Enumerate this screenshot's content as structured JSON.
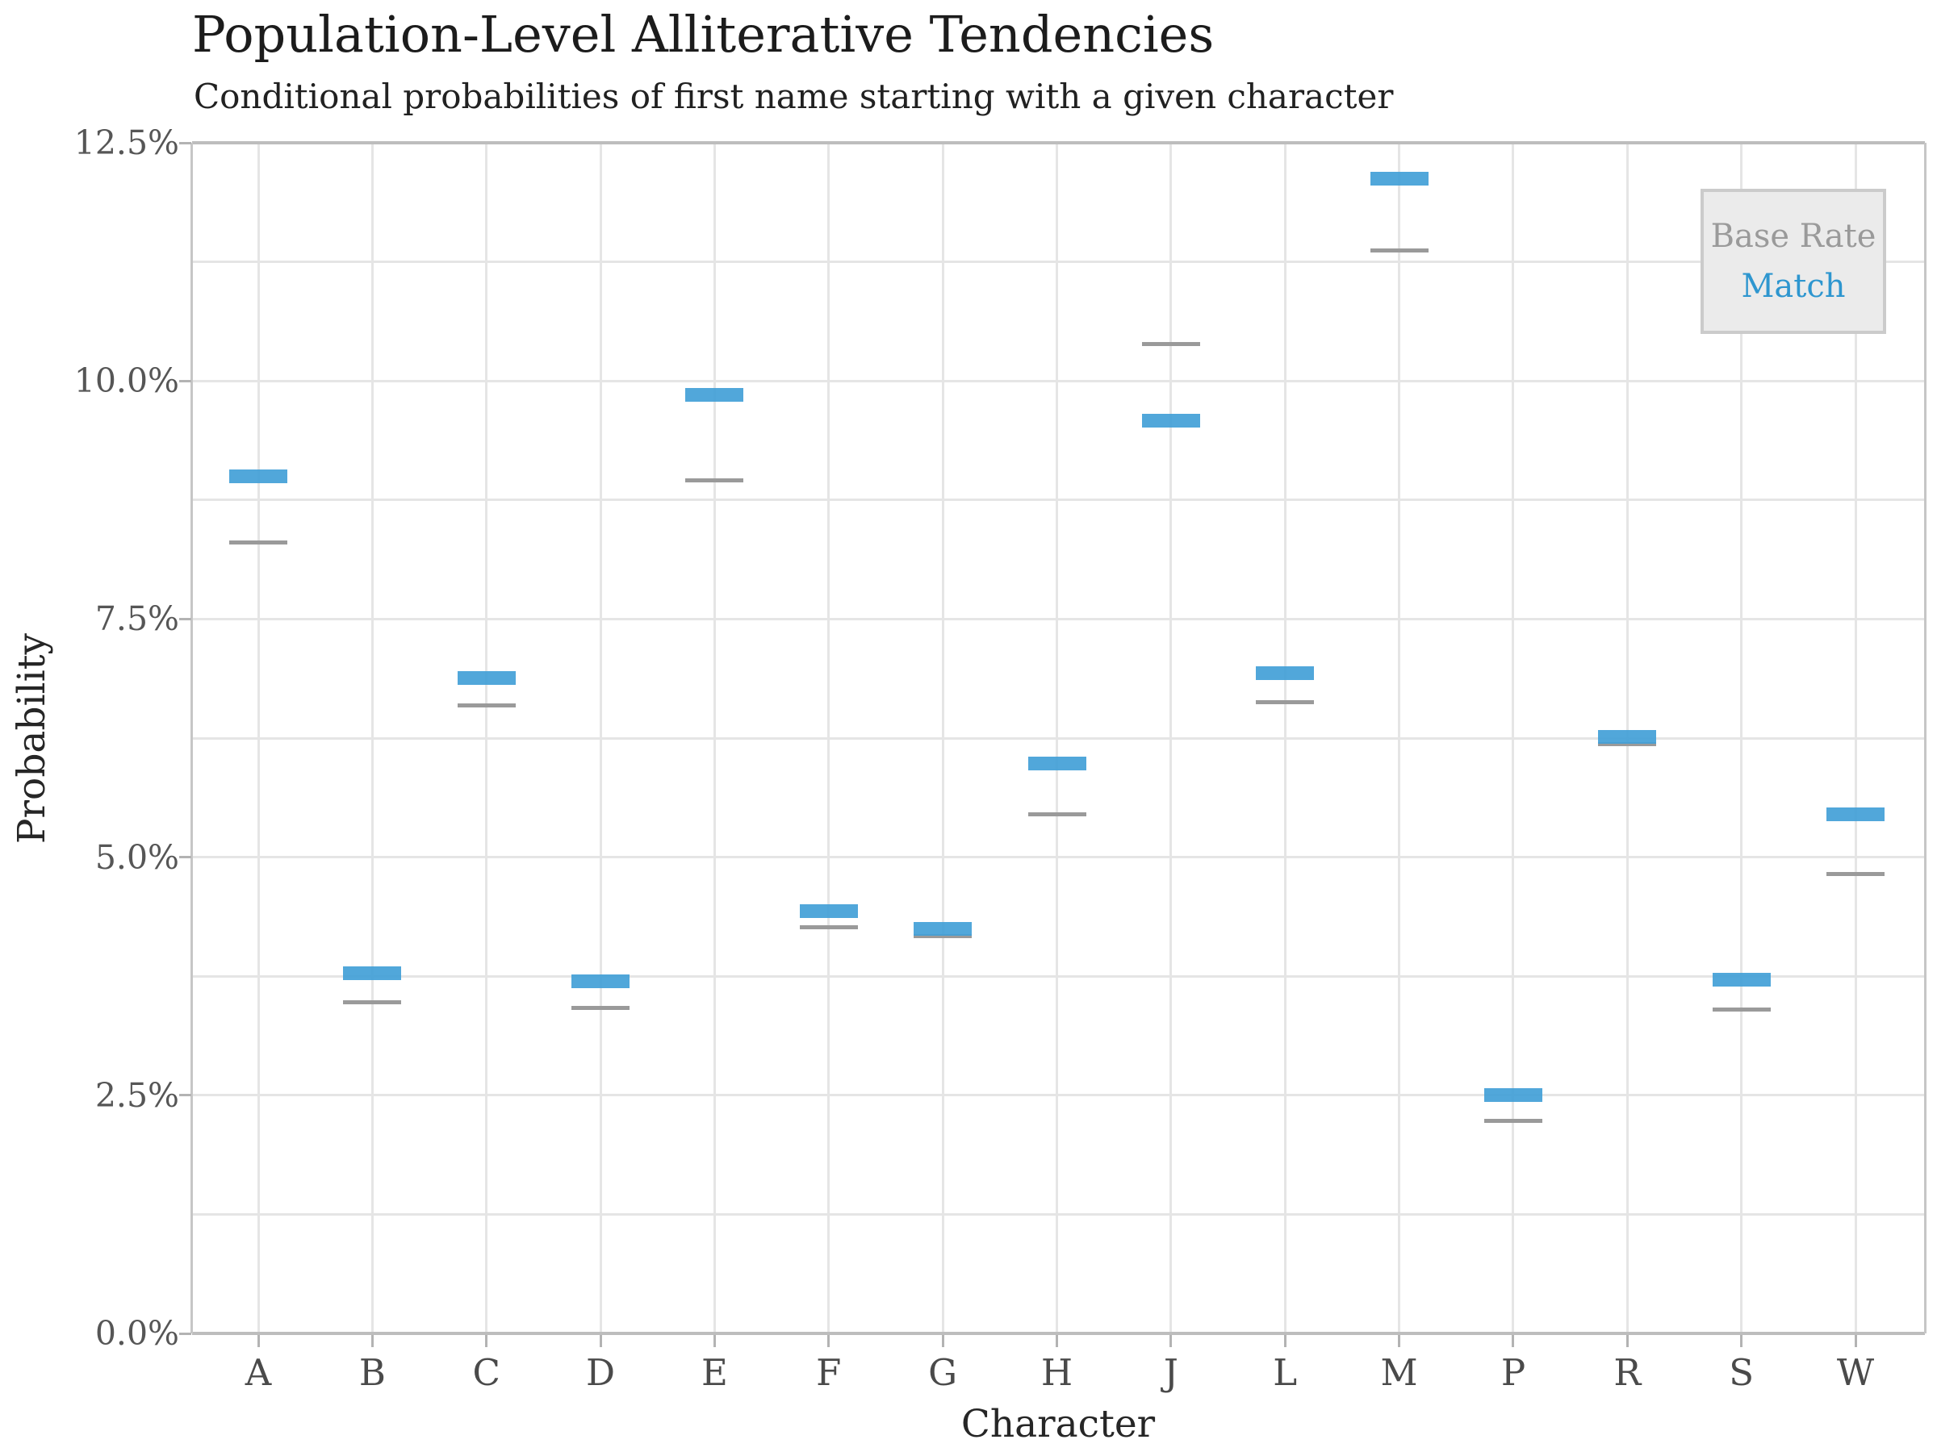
{
  "header": {
    "title": "Population-Level Alliterative Tendencies",
    "subtitle": "Conditional probabilities of first name starting with a given character"
  },
  "chart_data": {
    "type": "bar",
    "title": "Population-Level Alliterative Tendencies",
    "subtitle": "Conditional probabilities of first name starting with a given character",
    "xlabel": "Character",
    "ylabel": "Probability",
    "categories": [
      "A",
      "B",
      "C",
      "D",
      "E",
      "F",
      "G",
      "H",
      "J",
      "L",
      "M",
      "P",
      "R",
      "S",
      "W"
    ],
    "series": [
      {
        "name": "Match",
        "unit": "percent",
        "values": [
          9.0,
          3.78,
          6.88,
          3.7,
          9.85,
          4.43,
          4.25,
          5.98,
          9.58,
          6.93,
          12.12,
          2.5,
          6.26,
          3.71,
          5.45
        ]
      },
      {
        "name": "Base Rate",
        "unit": "percent",
        "values": [
          8.3,
          3.48,
          6.59,
          3.42,
          8.96,
          4.26,
          4.17,
          5.45,
          10.39,
          6.63,
          11.37,
          2.23,
          6.19,
          3.4,
          4.82
        ]
      }
    ],
    "ylim": [
      0,
      12.5
    ],
    "ytick_values": [
      0,
      2.5,
      5,
      7.5,
      10,
      12.5
    ],
    "ytick_labels": [
      "0.0%",
      "2.5%",
      "5.0%",
      "7.5%",
      "10.0%",
      "12.5%"
    ],
    "minor_ytick_values": [
      1.25,
      3.75,
      6.25,
      8.75,
      11.25
    ],
    "grid": true,
    "legend_position": "top-right"
  },
  "legend": {
    "items": [
      {
        "label": "Base Rate",
        "color": "#9a9a9a"
      },
      {
        "label": "Match",
        "color": "#2e96cf"
      }
    ]
  },
  "colors": {
    "match_bar": "#55a9db",
    "base_rate_line": "#9a9a9a",
    "gridline": "#e5e5e5",
    "spine": "#bdbdbd",
    "tick": "#b3b3b3",
    "tick_label": "#565656",
    "title_text": "#1c1c1c",
    "legend_bg": "#ebebeb",
    "legend_border": "#cbcbcb"
  }
}
